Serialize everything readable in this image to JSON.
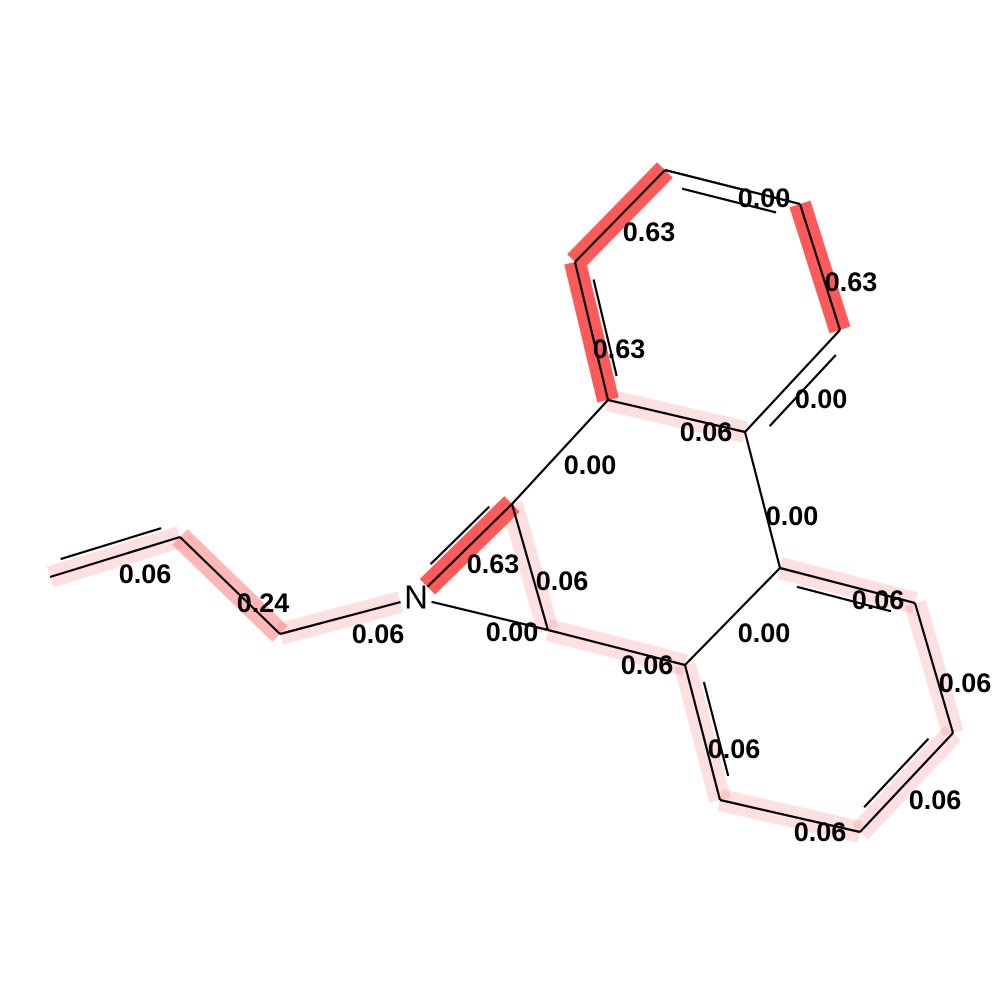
{
  "atoms": {
    "n1": {
      "symbol": "N"
    }
  },
  "bonds": [
    {
      "id": "b01",
      "weight": 0.06,
      "label": "0.06"
    },
    {
      "id": "b02",
      "weight": 0.24,
      "label": "0.24"
    },
    {
      "id": "b03",
      "weight": 0.06,
      "label": "0.06"
    },
    {
      "id": "b04",
      "weight": 0.63,
      "label": "0.63"
    },
    {
      "id": "b05",
      "weight": 0.0,
      "label": "0.00"
    },
    {
      "id": "b06",
      "weight": 0.06,
      "label": "0.06"
    },
    {
      "id": "b07",
      "weight": 0.0,
      "label": "0.00"
    },
    {
      "id": "b08",
      "weight": 0.63,
      "label": "0.63"
    },
    {
      "id": "b09",
      "weight": 0.63,
      "label": "0.63"
    },
    {
      "id": "b10",
      "weight": 0.0,
      "label": "0.00"
    },
    {
      "id": "b11",
      "weight": 0.63,
      "label": "0.63"
    },
    {
      "id": "b12",
      "weight": 0.0,
      "label": "0.00"
    },
    {
      "id": "b13",
      "weight": 0.06,
      "label": "0.06"
    },
    {
      "id": "b14",
      "weight": 0.0,
      "label": "0.00"
    },
    {
      "id": "b15",
      "weight": 0.06,
      "label": "0.06"
    },
    {
      "id": "b16",
      "weight": 0.06,
      "label": "0.06"
    },
    {
      "id": "b17",
      "weight": 0.06,
      "label": "0.06"
    },
    {
      "id": "b18",
      "weight": 0.06,
      "label": "0.06"
    },
    {
      "id": "b19",
      "weight": 0.06,
      "label": "0.06"
    },
    {
      "id": "b20",
      "weight": 0.0,
      "label": "0.00"
    },
    {
      "id": "b21",
      "weight": 0.06,
      "label": "0.06"
    }
  ],
  "colors": {
    "highlight": "#ff5a5a",
    "bond": "#000000",
    "background": "#ffffff"
  }
}
